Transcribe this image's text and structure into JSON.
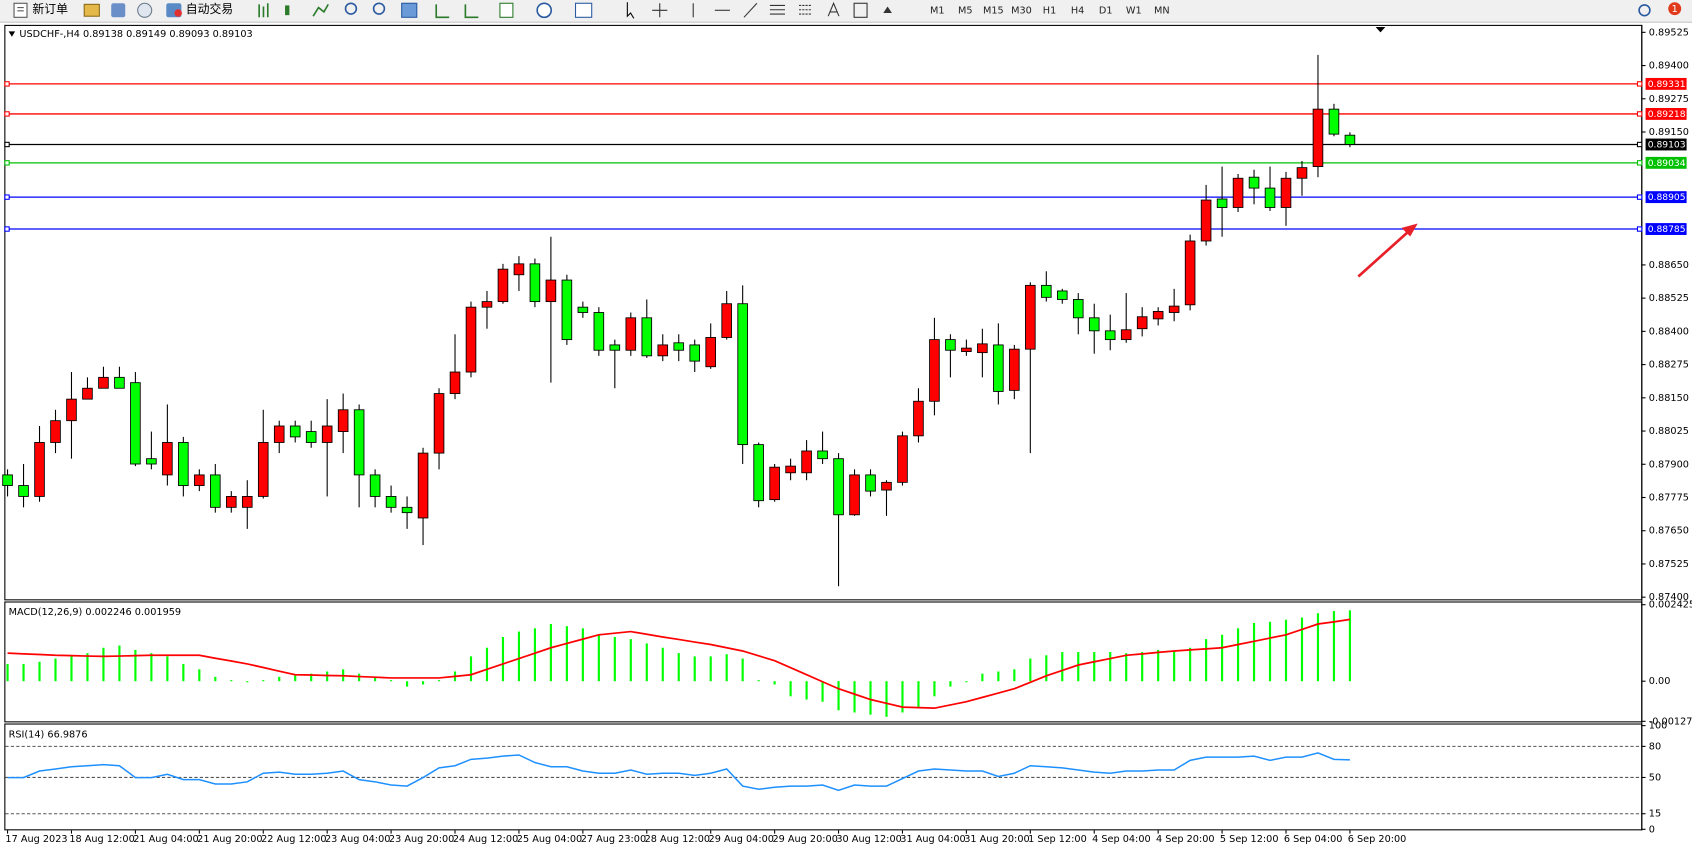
{
  "toolbar": {
    "new_order": "新订单",
    "auto_trading": "自动交易",
    "timeframes": [
      "M1",
      "M5",
      "M15",
      "M30",
      "H1",
      "H4",
      "D1",
      "W1",
      "MN"
    ],
    "notifications": "1"
  },
  "chart_data": [
    {
      "type": "candlestick",
      "title": "USDCHF-,H4  0.89138 0.89149 0.89093 0.89103",
      "categories": [
        "17 Aug 2023",
        null,
        null,
        null,
        "18 Aug 12:00",
        null,
        null,
        null,
        "21 Aug 04:00",
        null,
        null,
        null,
        "21 Aug 20:00",
        null,
        null,
        null,
        "22 Aug 12:00",
        null,
        null,
        null,
        "23 Aug 04:00",
        null,
        null,
        null,
        "23 Aug 20:00",
        null,
        null,
        null,
        "24 Aug 12:00",
        null,
        null,
        null,
        "25 Aug 04:00",
        null,
        null,
        null,
        "27 Aug 23:00",
        null,
        null,
        null,
        "28 Aug 12:00",
        null,
        null,
        null,
        "29 Aug 04:00",
        null,
        null,
        null,
        "29 Aug 20:00",
        null,
        null,
        null,
        "30 Aug 12:00",
        null,
        null,
        null,
        "31 Aug 04:00",
        null,
        null,
        null,
        "31 Aug 20:00",
        null,
        null,
        null,
        "1 Sep 12:00",
        null,
        null,
        null,
        "4 Sep 04:00",
        null,
        null,
        null,
        "4 Sep 20:00",
        null,
        null,
        null,
        "5 Sep 12:00",
        null,
        null,
        null,
        "6 Sep 04:00",
        null,
        null,
        null,
        "6 Sep 20:00"
      ],
      "open": [
        0.8786,
        0.8782,
        0.87779,
        0.87982,
        0.88064,
        0.88145,
        0.88186,
        0.88227,
        0.88207,
        0.87921,
        0.8786,
        0.87982,
        0.8782,
        0.8786,
        0.87738,
        0.87738,
        0.87779,
        0.87982,
        0.88044,
        0.88023,
        0.87982,
        0.88023,
        0.88105,
        0.8786,
        0.87779,
        0.87738,
        0.87698,
        0.87942,
        0.88166,
        0.88247,
        0.88491,
        0.88512,
        0.88613,
        0.88654,
        0.88512,
        0.88593,
        0.88491,
        0.88471,
        0.88349,
        0.88329,
        0.88451,
        0.88308,
        0.88357,
        0.88349,
        0.88267,
        0.88377,
        0.88504,
        0.87974,
        0.87767,
        0.87868,
        0.87868,
        0.8795,
        0.87921,
        0.8771,
        0.8786,
        0.87803,
        0.87832,
        0.88007,
        0.88137,
        0.88369,
        0.88324,
        0.8832,
        0.88349,
        0.88178,
        0.88333,
        0.88573,
        0.88552,
        0.8852,
        0.88451,
        0.88402,
        0.88369,
        0.8841,
        0.88447,
        0.88471,
        0.885,
        0.8874,
        0.88898,
        0.88866,
        0.8898,
        0.88939,
        0.88866,
        0.88976,
        0.8902,
        0.89236,
        0.89138
      ],
      "high": [
        0.87881,
        0.87901,
        0.88044,
        0.88105,
        0.88247,
        0.88227,
        0.88267,
        0.88267,
        0.88247,
        0.88023,
        0.88125,
        0.88003,
        0.87881,
        0.87901,
        0.87799,
        0.8784,
        0.88105,
        0.88064,
        0.88064,
        0.88064,
        0.88145,
        0.88166,
        0.88125,
        0.87881,
        0.8782,
        0.87779,
        0.87962,
        0.88186,
        0.88389,
        0.88512,
        0.88552,
        0.88654,
        0.88683,
        0.88674,
        0.88756,
        0.88613,
        0.88512,
        0.88491,
        0.88369,
        0.88471,
        0.8852,
        0.88389,
        0.88389,
        0.88369,
        0.8843,
        0.88552,
        0.88573,
        0.87982,
        0.87901,
        0.87921,
        0.87991,
        0.88023,
        0.87942,
        0.87881,
        0.87881,
        0.8784,
        0.88023,
        0.88186,
        0.88451,
        0.88389,
        0.88369,
        0.8841,
        0.8843,
        0.88349,
        0.88585,
        0.88626,
        0.8856,
        0.88544,
        0.88504,
        0.88463,
        0.88544,
        0.88491,
        0.88491,
        0.8856,
        0.88764,
        0.88951,
        0.8902,
        0.88992,
        0.89008,
        0.8902,
        0.89,
        0.89041,
        0.8944,
        0.89256,
        0.89149
      ],
      "low": [
        0.87779,
        0.87738,
        0.87759,
        0.87942,
        0.87921,
        0.88145,
        0.88186,
        0.88186,
        0.87893,
        0.87881,
        0.8782,
        0.87779,
        0.87799,
        0.87718,
        0.87718,
        0.87657,
        0.87771,
        0.87942,
        0.87982,
        0.87962,
        0.87779,
        0.87942,
        0.87738,
        0.87738,
        0.87718,
        0.87657,
        0.87596,
        0.87881,
        0.88145,
        0.88227,
        0.8841,
        0.88504,
        0.88552,
        0.88491,
        0.88207,
        0.88349,
        0.88451,
        0.88308,
        0.88186,
        0.88308,
        0.883,
        0.88288,
        0.88288,
        0.88247,
        0.88259,
        0.88369,
        0.87901,
        0.87738,
        0.87759,
        0.8784,
        0.8784,
        0.87901,
        0.87441,
        0.87706,
        0.87779,
        0.87706,
        0.8782,
        0.87982,
        0.88084,
        0.88227,
        0.88308,
        0.88227,
        0.88125,
        0.88145,
        0.87942,
        0.88512,
        0.88504,
        0.88389,
        0.88316,
        0.88329,
        0.88357,
        0.88381,
        0.88422,
        0.88438,
        0.88479,
        0.88723,
        0.88756,
        0.88849,
        0.88878,
        0.88853,
        0.88797,
        0.8891,
        0.8898,
        0.89134,
        0.89093
      ],
      "close": [
        0.8782,
        0.87779,
        0.87982,
        0.88064,
        0.88145,
        0.88186,
        0.88227,
        0.88186,
        0.87901,
        0.87901,
        0.87982,
        0.8782,
        0.8786,
        0.87738,
        0.87779,
        0.87779,
        0.87982,
        0.88044,
        0.88003,
        0.87982,
        0.88044,
        0.88105,
        0.8786,
        0.87779,
        0.87738,
        0.87718,
        0.87942,
        0.88166,
        0.88247,
        0.88491,
        0.88512,
        0.88634,
        0.88654,
        0.88512,
        0.88593,
        0.88369,
        0.88471,
        0.88329,
        0.88329,
        0.88451,
        0.88308,
        0.88349,
        0.88329,
        0.88288,
        0.88377,
        0.88504,
        0.87974,
        0.87763,
        0.87889,
        0.87893,
        0.8795,
        0.87921,
        0.8771,
        0.8786,
        0.87799,
        0.87832,
        0.88007,
        0.88137,
        0.88369,
        0.88329,
        0.88337,
        0.88353,
        0.88174,
        0.88333,
        0.88573,
        0.88528,
        0.8852,
        0.88451,
        0.88402,
        0.88369,
        0.88406,
        0.88455,
        0.88475,
        0.88495,
        0.8874,
        0.88894,
        0.88866,
        0.88976,
        0.88939,
        0.88866,
        0.88976,
        0.89016,
        0.89236,
        0.89142,
        0.89103
      ],
      "up_color": "#ff0000",
      "down_color": "#00ff00",
      "levels": [
        {
          "value": 0.89331,
          "color": "#ff0000"
        },
        {
          "value": 0.89218,
          "color": "#ff0000"
        },
        {
          "value": 0.89103,
          "color": "#000000"
        },
        {
          "value": 0.89034,
          "color": "#00c000"
        },
        {
          "value": 0.88905,
          "color": "#0000ff"
        },
        {
          "value": 0.88785,
          "color": "#0000ff"
        }
      ],
      "ylim": [
        0.87392,
        0.89549
      ],
      "yticks": [
        {
          "value": 0.874,
          "label": "0.87400"
        },
        0.87525,
        {
          "value": 0.8765,
          "label": "0.87650"
        },
        0.87775,
        {
          "value": 0.879,
          "label": "0.87900"
        },
        0.88025,
        {
          "value": 0.8815,
          "label": "0.88150"
        },
        0.88275,
        {
          "value": 0.884,
          "label": "0.88400"
        },
        0.88525,
        {
          "value": 0.8865,
          "label": "0.88650"
        },
        {
          "value": 0.8915,
          "label": "0.89150"
        },
        0.89275,
        {
          "value": 0.894,
          "label": "0.89400"
        },
        0.89525
      ]
    },
    {
      "type": "combo",
      "title": "MACD(12,26,9) 0.002246 0.001959",
      "series": [
        {
          "type": "bar",
          "color": "#00ff00",
          "values": [
            0.000547,
            0.000547,
            0.000616,
            0.000718,
            0.000787,
            0.000889,
            0.00106,
            0.001129,
            0.000992,
            0.000889,
            0.000787,
            0.000547,
            0.000376,
            0.000137,
            3.4e-05,
            -3.4e-05,
            3.4e-05,
            0.000137,
            0.000205,
            0.000239,
            0.000308,
            0.000376,
            0.000239,
            0.000103,
            3.4e-05,
            -0.000171,
            -0.000103,
            3.4e-05,
            0.000308,
            0.000787,
            0.00106,
            0.001402,
            0.001573,
            0.001676,
            0.001813,
            0.001744,
            0.001676,
            0.001471,
            0.001402,
            0.001334,
            0.001197,
            0.00106,
            0.000889,
            0.000787,
            0.000787,
            0.000855,
            0.000718,
            3.4e-05,
            -0.000103,
            -0.000479,
            -0.000581,
            -0.00065,
            -0.000923,
            -0.000992,
            -0.00106,
            -0.001129,
            -0.000992,
            -0.000821,
            -0.000479,
            -0.000171,
            -3.4e-05,
            0.000239,
            0.000308,
            0.000376,
            0.000718,
            0.000821,
            0.000923,
            0.000923,
            0.000923,
            0.000923,
            0.000889,
            0.000923,
            0.000992,
            0.000958,
            0.00106,
            0.001334,
            0.001471,
            0.001676,
            0.001847,
            0.001881,
            0.001949,
            0.002018,
            0.002155,
            0.002223,
            0.002246
          ]
        },
        {
          "type": "line",
          "color": "#ff0000",
          "values": [
            0.000889,
            0.000865,
            0.000845,
            0.000821,
            0.000811,
            0.000797,
            0.000787,
            0.000797,
            0.000811,
            0.000821,
            0.000821,
            0.000821,
            0.000821,
            0.000728,
            0.00064,
            0.000547,
            0.000434,
            0.000318,
            0.000205,
            0.000195,
            0.000181,
            0.000171,
            0.000147,
            0.000127,
            0.000103,
            0.000103,
            0.000103,
            0.000103,
            0.000154,
            0.000205,
            0.000376,
            0.000547,
            0.000718,
            0.000889,
            0.00106,
            0.001197,
            0.001334,
            0.001471,
            0.001522,
            0.001573,
            0.001488,
            0.001402,
            0.001324,
            0.001241,
            0.001163,
            0.00106,
            0.000958,
            0.000804,
            0.00065,
            0.000428,
            0.000205,
            -1.7e-05,
            -0.000239,
            -0.00041,
            -0.000581,
            -0.000701,
            -0.000821,
            -0.000838,
            -0.000855,
            -0.000752,
            -0.00065,
            -0.000513,
            -0.000376,
            -0.000239,
            -3.4e-05,
            0.000171,
            0.000342,
            0.000513,
            0.000616,
            0.000718,
            0.000821,
            0.000865,
            0.000913,
            0.000958,
            0.000992,
            0.001026,
            0.00106,
            0.001163,
            0.001265,
            0.001368,
            0.001471,
            0.001642,
            0.001813,
            0.001881,
            0.001959
          ]
        }
      ],
      "ylim": [
        -0.001272,
        0.002425
      ],
      "yticks": [
        0.002425,
        {
          "value": 0,
          "label": "0.00"
        },
        -0.001272
      ]
    },
    {
      "type": "line",
      "title": "RSI(14) 66.9876",
      "color": "#1e90ff",
      "values": [
        49.9,
        49.9,
        56.2,
        58.2,
        60.3,
        61.3,
        62.4,
        61.3,
        49.9,
        49.9,
        53.1,
        47.9,
        47.9,
        43.7,
        43.7,
        45.8,
        54.1,
        55.1,
        53.1,
        53.1,
        54.1,
        56.2,
        47.9,
        45.8,
        42.7,
        41.7,
        49.9,
        59.3,
        61.3,
        67.5,
        68.6,
        70.6,
        71.7,
        64.4,
        60.3,
        60.3,
        56.2,
        54.1,
        54.1,
        57.2,
        53.1,
        54.1,
        54.1,
        52.0,
        54.1,
        58.2,
        41.7,
        38.6,
        40.6,
        41.7,
        41.7,
        42.7,
        37.6,
        42.7,
        41.7,
        41.7,
        48.9,
        56.2,
        58.2,
        57.2,
        56.2,
        56.2,
        51.0,
        54.1,
        61.3,
        60.3,
        59.3,
        57.2,
        55.1,
        54.1,
        56.2,
        56.2,
        57.2,
        57.2,
        66.5,
        69.6,
        69.6,
        69.6,
        70.6,
        66.5,
        69.6,
        69.6,
        73.7,
        67.5,
        66.9876
      ],
      "ylim": [
        0,
        100
      ],
      "yticks": [
        100,
        80,
        50,
        15,
        0
      ]
    }
  ]
}
